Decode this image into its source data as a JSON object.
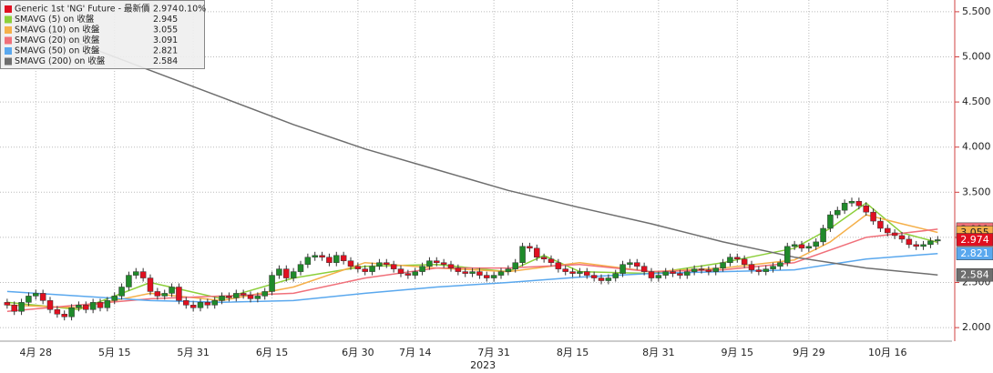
{
  "chart_data": {
    "type": "candlestick",
    "xlim": [
      -1,
      132
    ],
    "ylim": [
      1.85,
      5.63
    ],
    "xticks": [
      {
        "value": 4,
        "label": "4月 28"
      },
      {
        "value": 15,
        "label": "5月 15"
      },
      {
        "value": 26,
        "label": "5月 31"
      },
      {
        "value": 37,
        "label": "6月 15"
      },
      {
        "value": 49,
        "label": "6月 30"
      },
      {
        "value": 57,
        "label": "7月 14"
      },
      {
        "value": 68,
        "label": "7月 31"
      },
      {
        "value": 79,
        "label": "8月 15"
      },
      {
        "value": 91,
        "label": "8月 31"
      },
      {
        "value": 102,
        "label": "9月 15"
      },
      {
        "value": 112,
        "label": "9月 29"
      },
      {
        "value": 123,
        "label": "10月 16"
      }
    ],
    "x_year": "2023",
    "yticks": [
      {
        "value": 2,
        "label": "2.000"
      },
      {
        "value": 2.5,
        "label": "2.500"
      },
      {
        "value": 3,
        "label": "3.000"
      },
      {
        "value": 3.5,
        "label": "3.500"
      },
      {
        "value": 4,
        "label": "4.000"
      },
      {
        "value": 4.5,
        "label": "4.500"
      },
      {
        "value": 5,
        "label": "5.000"
      },
      {
        "value": 5.5,
        "label": "5.500"
      }
    ],
    "grid": true,
    "series": [
      {
        "name": "Generic 1st 'NG' Future - 最新價",
        "type": "candlestick",
        "color": "#e01020",
        "up_color": "#1f8a2a",
        "down_color": "#e01020",
        "last": 2.974,
        "change": 0.1,
        "change_label": "0.10%",
        "open": [
          2.28,
          2.25,
          2.18,
          2.28,
          2.35,
          2.38,
          2.3,
          2.2,
          2.15,
          2.12,
          2.22,
          2.25,
          2.2,
          2.28,
          2.22,
          2.3,
          2.35,
          2.45,
          2.58,
          2.62,
          2.55,
          2.4,
          2.35,
          2.38,
          2.45,
          2.3,
          2.25,
          2.22,
          2.28,
          2.25,
          2.3,
          2.35,
          2.33,
          2.38,
          2.36,
          2.32,
          2.35,
          2.4,
          2.58,
          2.65,
          2.55,
          2.62,
          2.7,
          2.78,
          2.8,
          2.78,
          2.72,
          2.8,
          2.74,
          2.68,
          2.65,
          2.62,
          2.68,
          2.72,
          2.7,
          2.65,
          2.6,
          2.58,
          2.62,
          2.68,
          2.74,
          2.72,
          2.7,
          2.66,
          2.62,
          2.6,
          2.62,
          2.58,
          2.55,
          2.58,
          2.62,
          2.65,
          2.72,
          2.9,
          2.88,
          2.78,
          2.76,
          2.72,
          2.65,
          2.62,
          2.6,
          2.62,
          2.58,
          2.55,
          2.52,
          2.55,
          2.6,
          2.7,
          2.72,
          2.68,
          2.62,
          2.55,
          2.58,
          2.62,
          2.6,
          2.58,
          2.62,
          2.65,
          2.64,
          2.62,
          2.66,
          2.72,
          2.78,
          2.76,
          2.7,
          2.64,
          2.62,
          2.65,
          2.68,
          2.72,
          2.9,
          2.92,
          2.88,
          2.9,
          2.95,
          3.1,
          3.25,
          3.3,
          3.38,
          3.4,
          3.35,
          3.28,
          3.18,
          3.1,
          3.05,
          3.02,
          2.98,
          2.92,
          2.9,
          2.92,
          2.96
        ],
        "high": [
          2.32,
          2.29,
          2.32,
          2.39,
          2.42,
          2.42,
          2.34,
          2.24,
          2.19,
          2.26,
          2.29,
          2.29,
          2.32,
          2.32,
          2.34,
          2.39,
          2.49,
          2.62,
          2.66,
          2.66,
          2.59,
          2.44,
          2.42,
          2.49,
          2.49,
          2.34,
          2.29,
          2.32,
          2.32,
          2.34,
          2.39,
          2.39,
          2.42,
          2.42,
          2.4,
          2.39,
          2.44,
          2.62,
          2.69,
          2.69,
          2.66,
          2.74,
          2.82,
          2.84,
          2.84,
          2.82,
          2.84,
          2.84,
          2.78,
          2.72,
          2.69,
          2.72,
          2.76,
          2.76,
          2.74,
          2.69,
          2.64,
          2.66,
          2.72,
          2.78,
          2.78,
          2.76,
          2.74,
          2.7,
          2.66,
          2.66,
          2.66,
          2.62,
          2.62,
          2.66,
          2.69,
          2.76,
          2.94,
          2.94,
          2.92,
          2.82,
          2.8,
          2.76,
          2.69,
          2.66,
          2.66,
          2.66,
          2.62,
          2.59,
          2.59,
          2.64,
          2.74,
          2.76,
          2.76,
          2.72,
          2.66,
          2.62,
          2.66,
          2.66,
          2.64,
          2.66,
          2.69,
          2.69,
          2.68,
          2.7,
          2.76,
          2.82,
          2.82,
          2.8,
          2.74,
          2.68,
          2.69,
          2.72,
          2.76,
          2.94,
          2.96,
          2.96,
          2.94,
          2.99,
          3.14,
          3.29,
          3.34,
          3.42,
          3.44,
          3.44,
          3.39,
          3.32,
          3.22,
          3.14,
          3.09,
          3.06,
          3.02,
          2.96,
          2.96,
          3.0,
          3.014
        ],
        "low": [
          2.21,
          2.14,
          2.14,
          2.24,
          2.31,
          2.26,
          2.16,
          2.11,
          2.08,
          2.08,
          2.18,
          2.16,
          2.16,
          2.18,
          2.18,
          2.26,
          2.31,
          2.41,
          2.54,
          2.51,
          2.36,
          2.31,
          2.31,
          2.34,
          2.26,
          2.21,
          2.18,
          2.18,
          2.21,
          2.21,
          2.26,
          2.29,
          2.29,
          2.32,
          2.28,
          2.28,
          2.31,
          2.36,
          2.54,
          2.51,
          2.51,
          2.58,
          2.66,
          2.74,
          2.74,
          2.68,
          2.68,
          2.7,
          2.64,
          2.61,
          2.58,
          2.58,
          2.64,
          2.66,
          2.61,
          2.56,
          2.54,
          2.54,
          2.58,
          2.64,
          2.68,
          2.66,
          2.62,
          2.58,
          2.56,
          2.56,
          2.54,
          2.51,
          2.51,
          2.54,
          2.58,
          2.61,
          2.68,
          2.84,
          2.74,
          2.72,
          2.68,
          2.61,
          2.58,
          2.56,
          2.56,
          2.54,
          2.51,
          2.48,
          2.48,
          2.51,
          2.56,
          2.66,
          2.64,
          2.58,
          2.51,
          2.51,
          2.54,
          2.56,
          2.54,
          2.54,
          2.58,
          2.6,
          2.58,
          2.58,
          2.62,
          2.68,
          2.72,
          2.66,
          2.6,
          2.58,
          2.58,
          2.61,
          2.64,
          2.68,
          2.86,
          2.84,
          2.84,
          2.86,
          2.91,
          3.06,
          3.21,
          3.26,
          3.34,
          3.31,
          3.24,
          3.14,
          3.06,
          3.01,
          2.98,
          2.94,
          2.88,
          2.86,
          2.86,
          2.88,
          2.92
        ],
        "close": [
          2.25,
          2.18,
          2.28,
          2.35,
          2.38,
          2.3,
          2.2,
          2.15,
          2.12,
          2.22,
          2.25,
          2.2,
          2.28,
          2.22,
          2.3,
          2.35,
          2.45,
          2.58,
          2.62,
          2.55,
          2.4,
          2.35,
          2.38,
          2.45,
          2.3,
          2.25,
          2.22,
          2.28,
          2.25,
          2.3,
          2.35,
          2.33,
          2.38,
          2.36,
          2.32,
          2.35,
          2.4,
          2.58,
          2.65,
          2.55,
          2.62,
          2.7,
          2.78,
          2.8,
          2.78,
          2.72,
          2.8,
          2.74,
          2.68,
          2.65,
          2.62,
          2.68,
          2.72,
          2.7,
          2.65,
          2.6,
          2.58,
          2.62,
          2.68,
          2.74,
          2.72,
          2.7,
          2.66,
          2.62,
          2.6,
          2.62,
          2.58,
          2.55,
          2.58,
          2.62,
          2.65,
          2.72,
          2.9,
          2.88,
          2.78,
          2.76,
          2.72,
          2.65,
          2.62,
          2.6,
          2.62,
          2.58,
          2.55,
          2.52,
          2.55,
          2.6,
          2.7,
          2.72,
          2.68,
          2.62,
          2.55,
          2.58,
          2.62,
          2.6,
          2.58,
          2.62,
          2.65,
          2.64,
          2.62,
          2.66,
          2.72,
          2.78,
          2.76,
          2.7,
          2.64,
          2.62,
          2.65,
          2.68,
          2.72,
          2.9,
          2.92,
          2.88,
          2.9,
          2.95,
          3.1,
          3.25,
          3.3,
          3.38,
          3.4,
          3.35,
          3.28,
          3.18,
          3.1,
          3.05,
          3.02,
          2.98,
          2.92,
          2.9,
          2.92,
          2.96,
          2.974
        ]
      },
      {
        "name": "SMAVG (5)  on 收盤",
        "type": "line",
        "color": "#8ccf3a",
        "last": 2.945,
        "x": [
          0,
          10,
          20,
          30,
          40,
          50,
          60,
          70,
          75,
          80,
          90,
          100,
          110,
          115,
          120,
          125,
          130
        ],
        "values": [
          2.28,
          2.2,
          2.5,
          2.32,
          2.55,
          2.68,
          2.7,
          2.62,
          2.8,
          2.62,
          2.6,
          2.72,
          2.88,
          3.1,
          3.38,
          3.05,
          2.945
        ]
      },
      {
        "name": "SMAVG (10)  on 收盤",
        "type": "line",
        "color": "#f5b04a",
        "last": 3.055,
        "x": [
          0,
          10,
          20,
          30,
          40,
          50,
          60,
          70,
          80,
          90,
          100,
          110,
          115,
          120,
          125,
          130
        ],
        "values": [
          2.25,
          2.22,
          2.38,
          2.3,
          2.45,
          2.72,
          2.66,
          2.62,
          2.72,
          2.62,
          2.66,
          2.75,
          2.95,
          3.25,
          3.15,
          3.055
        ]
      },
      {
        "name": "SMAVG (20)  on 收盤",
        "type": "line",
        "color": "#f0707a",
        "last": 3.091,
        "x": [
          0,
          10,
          20,
          30,
          40,
          50,
          60,
          70,
          80,
          90,
          100,
          110,
          120,
          130
        ],
        "values": [
          2.18,
          2.25,
          2.32,
          2.35,
          2.38,
          2.55,
          2.66,
          2.66,
          2.7,
          2.62,
          2.64,
          2.72,
          3.0,
          3.091
        ]
      },
      {
        "name": "SMAVG (50)  on 收盤",
        "type": "line",
        "color": "#5aa8ee",
        "last": 2.821,
        "x": [
          0,
          10,
          20,
          30,
          40,
          50,
          60,
          70,
          80,
          90,
          100,
          110,
          120,
          130
        ],
        "values": [
          2.4,
          2.35,
          2.3,
          2.28,
          2.3,
          2.38,
          2.45,
          2.5,
          2.56,
          2.6,
          2.62,
          2.64,
          2.76,
          2.821
        ]
      },
      {
        "name": "SMAVG (200)  on 收盤",
        "type": "line",
        "color": "#6e6e6e",
        "last": 2.584,
        "x": [
          0,
          10,
          20,
          30,
          40,
          50,
          60,
          70,
          80,
          90,
          100,
          110,
          120,
          130
        ],
        "values": [
          5.45,
          5.15,
          4.85,
          4.55,
          4.25,
          3.98,
          3.75,
          3.52,
          3.33,
          3.15,
          2.95,
          2.78,
          2.66,
          2.584
        ]
      }
    ]
  }
}
